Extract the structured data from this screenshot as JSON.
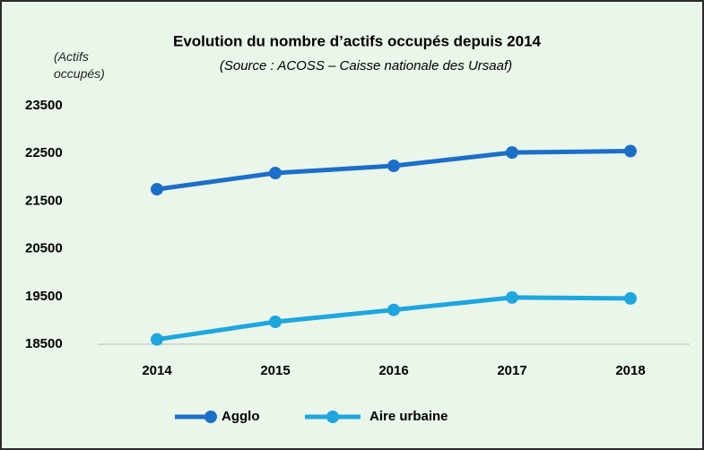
{
  "chart_data": {
    "type": "line",
    "title": "Evolution du nombre d’actifs occupés depuis 2014",
    "subtitle": "(Source : ACOSS – Caisse nationale des Ursaaf)",
    "y_label": "(Actifs occupés)",
    "categories": [
      "2014",
      "2015",
      "2016",
      "2017",
      "2018"
    ],
    "series": [
      {
        "name": "Agglo",
        "color": "#1c6fc8",
        "values": [
          21750,
          22090,
          22240,
          22520,
          22550
        ]
      },
      {
        "name": "Aire urbaine",
        "color": "#1ea6de",
        "values": [
          18600,
          18970,
          19220,
          19480,
          19460
        ]
      }
    ],
    "ylim": [
      18500,
      23500
    ],
    "yticks": [
      18500,
      19500,
      20500,
      21500,
      22500,
      23500
    ],
    "grid": false,
    "legend": "bottom"
  }
}
